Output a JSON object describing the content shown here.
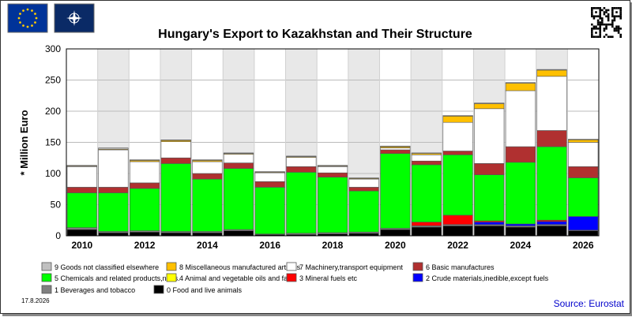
{
  "header": {
    "logo_left": "eu-flag",
    "logo_right": "nato-flag",
    "qr_icon": "qr-code-icon"
  },
  "footer": {
    "date": "17.8.2026",
    "source": "Source: Eurostat"
  },
  "chart_data": {
    "type": "bar",
    "stacked": true,
    "title": "Hungary's Export to Kazakhstan and Their Structure",
    "ylabel": "* Million Euro",
    "xlabel": "",
    "ylim": [
      0,
      300
    ],
    "yticks": [
      0,
      50,
      100,
      150,
      200,
      250,
      300
    ],
    "grid": true,
    "legend_position": "bottom",
    "categories": [
      "2010",
      "2011",
      "2012",
      "2013",
      "2014",
      "2015",
      "2016",
      "2017",
      "2018",
      "2019",
      "2020",
      "2021",
      "2022",
      "2023",
      "2024",
      "2025",
      "2026"
    ],
    "x_tick_labels": [
      "2010",
      "2012",
      "2014",
      "2016",
      "2018",
      "2020",
      "2022",
      "2024",
      "2026"
    ],
    "series": [
      {
        "name": "0 Food and live animals",
        "color": "#000000",
        "values": [
          10,
          5,
          6,
          5,
          5,
          8,
          2,
          2,
          3,
          4,
          10,
          14,
          16,
          16,
          14,
          16,
          8
        ]
      },
      {
        "name": "1 Beverages and tobacco",
        "color": "#808080",
        "values": [
          3,
          2,
          2,
          2,
          2,
          2,
          1,
          2,
          2,
          2,
          2,
          2,
          2,
          2,
          2,
          2,
          1
        ]
      },
      {
        "name": "2 Crude materials,inedible,except fuels",
        "color": "#0000ff",
        "values": [
          0,
          0,
          0,
          0,
          0,
          0,
          0,
          0,
          0,
          0,
          0,
          0,
          0,
          4,
          3,
          5,
          22
        ]
      },
      {
        "name": "3 Mineral fuels etc",
        "color": "#ff0000",
        "values": [
          0,
          0,
          0,
          0,
          0,
          0,
          0,
          0,
          0,
          0,
          0,
          6,
          15,
          2,
          0,
          2,
          0
        ]
      },
      {
        "name": "4 Animal and vegetable oils and fats",
        "color": "#ffff00",
        "values": [
          0,
          0,
          0,
          0,
          0,
          0,
          0,
          0,
          0,
          0,
          0,
          0,
          0,
          0,
          0,
          0,
          0
        ]
      },
      {
        "name": "5 Chemicals and related products,n.e.s.",
        "color": "#00ff00",
        "values": [
          56,
          62,
          68,
          109,
          84,
          98,
          75,
          98,
          89,
          66,
          120,
          92,
          97,
          74,
          99,
          118,
          62
        ]
      },
      {
        "name": "6 Basic manufactures",
        "color": "#b03030",
        "values": [
          9,
          9,
          9,
          9,
          9,
          9,
          9,
          9,
          7,
          6,
          6,
          6,
          6,
          18,
          25,
          26,
          18
        ]
      },
      {
        "name": "7 Machinery,transport equipment",
        "color": "#ffffff",
        "values": [
          33,
          60,
          34,
          26,
          19,
          14,
          14,
          15,
          10,
          13,
          3,
          10,
          46,
          88,
          90,
          87,
          39
        ]
      },
      {
        "name": "8 Miscellaneous manufactured articles",
        "color": "#ffc000",
        "values": [
          1,
          1,
          2,
          2,
          2,
          1,
          1,
          1,
          1,
          1,
          2,
          2,
          10,
          8,
          12,
          10,
          4
        ]
      },
      {
        "name": "9 Goods not classified elsewhere",
        "color": "#c0c0c0",
        "values": [
          1,
          2,
          1,
          1,
          1,
          1,
          1,
          1,
          1,
          1,
          1,
          1,
          1,
          1,
          1,
          1,
          1
        ]
      }
    ],
    "legend_order": [
      9,
      8,
      7,
      6,
      5,
      4,
      3,
      2,
      1,
      0
    ]
  }
}
